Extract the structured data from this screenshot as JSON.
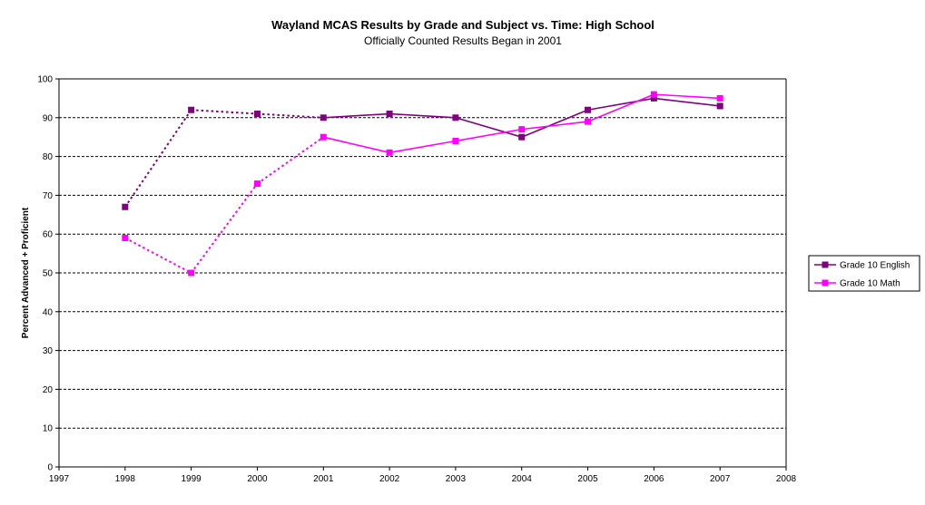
{
  "chart_data": {
    "type": "line",
    "title": "Wayland MCAS Results by Grade and Subject vs. Time: High School",
    "subtitle": "Officially Counted Results Began in 2001",
    "xlabel": "",
    "ylabel": "Percent Advanced + Proficient",
    "xlim": [
      1997,
      2008
    ],
    "ylim": [
      0,
      100
    ],
    "x_ticks": [
      1997,
      1998,
      1999,
      2000,
      2001,
      2002,
      2003,
      2004,
      2005,
      2006,
      2007,
      2008
    ],
    "y_ticks": [
      0,
      10,
      20,
      30,
      40,
      50,
      60,
      70,
      80,
      90,
      100
    ],
    "grid": "horizontal dashed",
    "legend_position": "right",
    "official_start_year": 2001,
    "series": [
      {
        "name": "Grade 10 English",
        "color": "#800080",
        "marker": "square",
        "x": [
          1998,
          1999,
          2000,
          2001,
          2002,
          2003,
          2004,
          2005,
          2006,
          2007
        ],
        "values": [
          67,
          92,
          91,
          90,
          91,
          90,
          85,
          92,
          95,
          93
        ]
      },
      {
        "name": "Grade 10 Math",
        "color": "#FF00FF",
        "marker": "square",
        "x": [
          1998,
          1999,
          2000,
          2001,
          2002,
          2003,
          2004,
          2005,
          2006,
          2007
        ],
        "values": [
          59,
          50,
          73,
          85,
          81,
          84,
          87,
          89,
          96,
          95
        ]
      }
    ]
  }
}
